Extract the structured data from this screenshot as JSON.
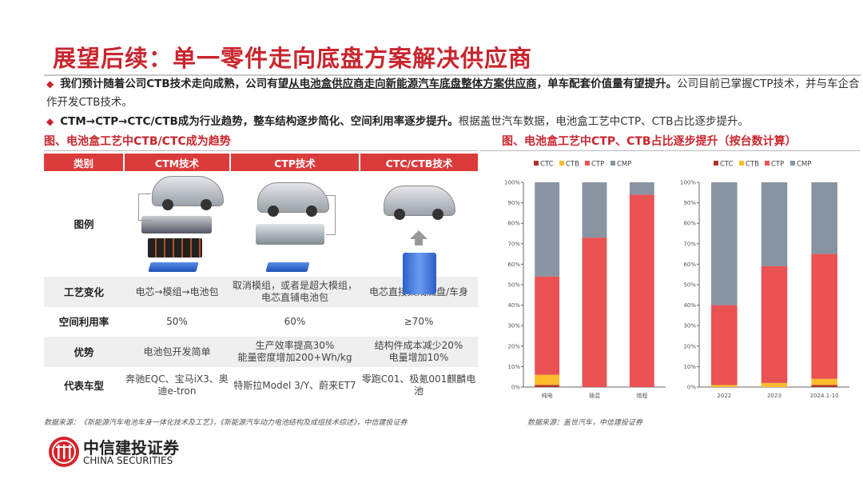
{
  "title": "展望后续：单一零件走向底盘方案解决供应商",
  "bullets": [
    {
      "bold": "我们预计随着公司CTB技术走向成熟，公司有望",
      "underline": "从电池盒供应商走向新能源汽车底盘整体方案供应商",
      "bold2": "，单车配套价值量有望提升。",
      "normal": "公司目前已掌握CTP技术，并与车企合作开发CTB技术。"
    },
    {
      "bold": "CTM→CTP→CTC/CTB成为行业趋势，整车结构逐步简化、空间利用率逐步提升。",
      "normal": "根据盖世汽车数据，电池盒工艺中CTP、CTB占比逐步提升。"
    }
  ],
  "left_caption": "图、电池盒工艺中CTB/CTC成为趋势",
  "right_caption": "图、电池盒工艺中CTP、CTB占比逐步提升（按台数计算）",
  "table": {
    "headers": [
      "类别",
      "CTM技术",
      "CTP技术",
      "CTC/CTB技术"
    ],
    "image_row_label": "图例",
    "rows": [
      {
        "label": "工艺变化",
        "cells": [
          "电芯→模组→电池包",
          "取消模组，或者是超大模组，电芯直铺电池包",
          "电芯直接集成底盘/车身"
        ]
      },
      {
        "label": "空间利用率",
        "cells": [
          "50%",
          "60%",
          "≥70%"
        ]
      },
      {
        "label": "优势",
        "cells": [
          "电池包开发简单",
          "生产效率提高30%\n能量密度增加200+Wh/kg",
          "结构件成本减少20%\n电量增加10%"
        ]
      },
      {
        "label": "代表车型",
        "cells": [
          "奔驰EQC、宝马iX3、奥迪e-tron",
          "特斯拉Model 3/Y、蔚来ET7",
          "零跑C01、极氪001麒麟电池"
        ]
      }
    ]
  },
  "chart_data": [
    {
      "type": "bar",
      "stacked": true,
      "categories": [
        "纯电",
        "插混",
        "增程"
      ],
      "ylim": [
        0,
        100
      ],
      "yticks": [
        "0%",
        "10%",
        "20%",
        "30%",
        "40%",
        "50%",
        "60%",
        "70%",
        "80%",
        "90%",
        "100%"
      ],
      "legend": "top",
      "series": [
        {
          "name": "CTC",
          "color": "#b3302f",
          "values": [
            1,
            0,
            0
          ]
        },
        {
          "name": "CTB",
          "color": "#fbbd2c",
          "values": [
            5,
            0,
            0
          ]
        },
        {
          "name": "CTP",
          "color": "#ea5253",
          "values": [
            48,
            73,
            94
          ]
        },
        {
          "name": "CMP",
          "color": "#8894a2",
          "values": [
            46,
            27,
            6
          ]
        }
      ]
    },
    {
      "type": "bar",
      "stacked": true,
      "categories": [
        "2022",
        "2023",
        "2024.1-10"
      ],
      "ylim": [
        0,
        100
      ],
      "yticks": [
        "0%",
        "10%",
        "20%",
        "30%",
        "40%",
        "50%",
        "60%",
        "70%",
        "80%",
        "90%",
        "100%"
      ],
      "legend": "top",
      "series": [
        {
          "name": "CTC",
          "color": "#b3302f",
          "values": [
            0,
            0,
            1
          ]
        },
        {
          "name": "CTB",
          "color": "#fbbd2c",
          "values": [
            1,
            2,
            3
          ]
        },
        {
          "name": "CTP",
          "color": "#ea5253",
          "values": [
            39,
            57,
            61
          ]
        },
        {
          "name": "CMP",
          "color": "#8894a2",
          "values": [
            60,
            41,
            35
          ]
        }
      ]
    }
  ],
  "sources": {
    "left": "数据来源：《新能源汽车电池车身一体化技术及工艺》，《新能源汽车动力电池结构及成组技术综述》，中信建投证券",
    "right": "数据来源：盖世汽车，中信建投证券"
  },
  "logo": {
    "cn": "中信建投证券",
    "en": "CHINA SECURITIES",
    "color": "#d6232a"
  }
}
